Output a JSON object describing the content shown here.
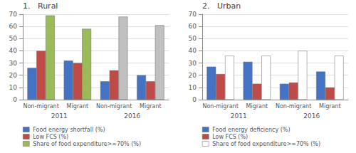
{
  "chart_data": [
    {
      "type": "bar",
      "title": "1.   Rural",
      "categories": [
        "Non-migrant",
        "Migrant",
        "Non-migrant",
        "Migrant"
      ],
      "annotations": [
        "2011",
        "2016"
      ],
      "series": [
        {
          "name": "Food energy shortfall (%)",
          "colors": [
            "#4472C4",
            "#4472C4",
            "#4472C4",
            "#4472C4"
          ],
          "values": [
            26,
            32,
            15,
            20
          ]
        },
        {
          "name": "Low FCS (%)",
          "colors": [
            "#BE4B48",
            "#BE4B48",
            "#BE4B48",
            "#BE4B48"
          ],
          "values": [
            40,
            30,
            24,
            15
          ]
        },
        {
          "name": "Share of food expenditure>=70% (%)",
          "colors": [
            "#9BBB59",
            "#9BBB59",
            "#C0C0C0",
            "#C0C0C0"
          ],
          "values": [
            69,
            58,
            68,
            61
          ]
        }
      ],
      "ylim": [
        0,
        70
      ],
      "yticks": [
        0,
        10,
        20,
        30,
        40,
        50,
        60,
        70
      ],
      "grid": true,
      "legend": "bottom"
    },
    {
      "type": "bar",
      "title": "2.   Urban",
      "categories": [
        "Non-migrant",
        "Migrant",
        "Non-migrant",
        "Migrant"
      ],
      "annotations": [
        "2011",
        "2016"
      ],
      "series": [
        {
          "name": "Food energy deficiency (%)",
          "colors": [
            "#4472C4",
            "#4472C4",
            "#4472C4",
            "#4472C4"
          ],
          "values": [
            27,
            31,
            13,
            23
          ]
        },
        {
          "name": "Low FCS (%)",
          "colors": [
            "#BE4B48",
            "#BE4B48",
            "#BE4B48",
            "#BE4B48"
          ],
          "values": [
            21,
            13,
            14,
            10
          ]
        },
        {
          "name": "Share of food expenditure>=70% (%)",
          "colors": [
            "#FFFFFF",
            "#FFFFFF",
            "#FFFFFF",
            "#FFFFFF"
          ],
          "values": [
            36,
            36,
            40,
            36
          ]
        }
      ],
      "ylim": [
        0,
        70
      ],
      "yticks": [
        0,
        10,
        20,
        30,
        40,
        50,
        60,
        70
      ],
      "grid": true,
      "legend": "bottom"
    }
  ]
}
